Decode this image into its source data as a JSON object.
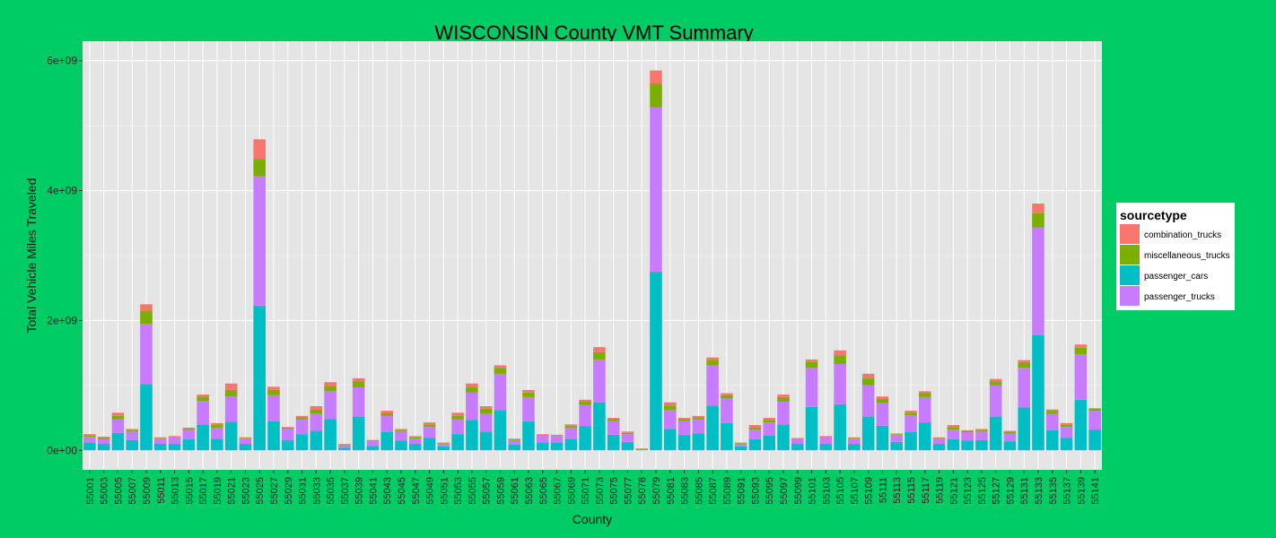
{
  "chart_data": {
    "type": "bar",
    "stacked": true,
    "title": "WISCONSIN County VMT Summary",
    "xlabel": "County",
    "ylabel": "Total Vehicle Miles Traveled",
    "ylim": [
      -300000000,
      6300000000
    ],
    "yticks": [
      0,
      2000000000,
      4000000000,
      6000000000
    ],
    "ytick_labels": [
      "0e+00",
      "2e+09",
      "4e+09",
      "6e+09"
    ],
    "grid": true,
    "legend": {
      "title": "sourcetype",
      "position": "right",
      "entries": [
        "combination_trucks",
        "miscellaneous_trucks",
        "passenger_cars",
        "passenger_trucks"
      ]
    },
    "colors": {
      "passenger_cars": "#00bfc4",
      "passenger_trucks": "#c77cff",
      "miscellaneous_trucks": "#7cae00",
      "combination_trucks": "#f8766d",
      "background": "#00cc66",
      "panel": "#e5e5e5"
    },
    "categories": [
      "55001",
      "55003",
      "55005",
      "55007",
      "55009",
      "55011",
      "55013",
      "55015",
      "55017",
      "55019",
      "55021",
      "55023",
      "55025",
      "55027",
      "55029",
      "55031",
      "55033",
      "55035",
      "55037",
      "55039",
      "55041",
      "55043",
      "55045",
      "55047",
      "55049",
      "55051",
      "55053",
      "55055",
      "55057",
      "55059",
      "55061",
      "55063",
      "55065",
      "55067",
      "55069",
      "55071",
      "55073",
      "55075",
      "55077",
      "55078",
      "55079",
      "55081",
      "55083",
      "55085",
      "55087",
      "55089",
      "55091",
      "55093",
      "55095",
      "55097",
      "55099",
      "55101",
      "55103",
      "55105",
      "55107",
      "55109",
      "55111",
      "55113",
      "55115",
      "55117",
      "55119",
      "55121",
      "55123",
      "55125",
      "55127",
      "55129",
      "55131",
      "55133",
      "55135",
      "55137",
      "55139",
      "55141"
    ],
    "series": [
      {
        "name": "passenger_cars",
        "values": [
          120000000,
          100000000,
          270000000,
          160000000,
          1020000000,
          100000000,
          100000000,
          170000000,
          400000000,
          180000000,
          440000000,
          100000000,
          2230000000,
          450000000,
          160000000,
          250000000,
          300000000,
          480000000,
          40000000,
          520000000,
          70000000,
          280000000,
          150000000,
          100000000,
          190000000,
          60000000,
          250000000,
          470000000,
          290000000,
          620000000,
          90000000,
          450000000,
          120000000,
          120000000,
          180000000,
          370000000,
          740000000,
          240000000,
          130000000,
          10000000,
          2750000000,
          330000000,
          240000000,
          260000000,
          690000000,
          420000000,
          60000000,
          170000000,
          230000000,
          400000000,
          100000000,
          670000000,
          100000000,
          710000000,
          100000000,
          520000000,
          380000000,
          130000000,
          280000000,
          430000000,
          100000000,
          170000000,
          150000000,
          160000000,
          520000000,
          140000000,
          660000000,
          1780000000,
          310000000,
          190000000,
          780000000,
          320000000
        ]
      },
      {
        "name": "passenger_trucks",
        "values": [
          90000000,
          70000000,
          210000000,
          130000000,
          930000000,
          80000000,
          100000000,
          140000000,
          360000000,
          170000000,
          390000000,
          80000000,
          1990000000,
          400000000,
          170000000,
          230000000,
          270000000,
          430000000,
          40000000,
          450000000,
          70000000,
          250000000,
          140000000,
          80000000,
          170000000,
          40000000,
          230000000,
          420000000,
          280000000,
          560000000,
          70000000,
          370000000,
          110000000,
          100000000,
          170000000,
          330000000,
          660000000,
          210000000,
          120000000,
          10000000,
          2530000000,
          290000000,
          210000000,
          220000000,
          620000000,
          380000000,
          40000000,
          150000000,
          200000000,
          350000000,
          70000000,
          600000000,
          100000000,
          620000000,
          80000000,
          480000000,
          350000000,
          110000000,
          260000000,
          390000000,
          80000000,
          150000000,
          130000000,
          130000000,
          480000000,
          120000000,
          610000000,
          1650000000,
          260000000,
          170000000,
          700000000,
          290000000
        ]
      },
      {
        "name": "miscellaneous_trucks",
        "values": [
          20000000,
          20000000,
          50000000,
          20000000,
          200000000,
          10000000,
          10000000,
          20000000,
          70000000,
          40000000,
          100000000,
          10000000,
          270000000,
          80000000,
          20000000,
          30000000,
          60000000,
          80000000,
          10000000,
          90000000,
          10000000,
          40000000,
          20000000,
          20000000,
          40000000,
          10000000,
          50000000,
          80000000,
          70000000,
          90000000,
          10000000,
          70000000,
          10000000,
          10000000,
          30000000,
          50000000,
          110000000,
          30000000,
          20000000,
          5000000,
          370000000,
          70000000,
          30000000,
          30000000,
          80000000,
          50000000,
          10000000,
          30000000,
          40000000,
          70000000,
          10000000,
          90000000,
          10000000,
          130000000,
          10000000,
          110000000,
          60000000,
          10000000,
          40000000,
          60000000,
          10000000,
          40000000,
          20000000,
          20000000,
          60000000,
          30000000,
          80000000,
          220000000,
          40000000,
          40000000,
          100000000,
          30000000
        ]
      },
      {
        "name": "combination_trucks",
        "values": [
          20000000,
          20000000,
          50000000,
          20000000,
          100000000,
          10000000,
          10000000,
          20000000,
          30000000,
          30000000,
          100000000,
          10000000,
          300000000,
          50000000,
          10000000,
          20000000,
          50000000,
          60000000,
          10000000,
          50000000,
          10000000,
          40000000,
          20000000,
          20000000,
          30000000,
          10000000,
          50000000,
          60000000,
          40000000,
          40000000,
          10000000,
          40000000,
          10000000,
          10000000,
          20000000,
          30000000,
          80000000,
          20000000,
          20000000,
          5000000,
          200000000,
          50000000,
          20000000,
          20000000,
          40000000,
          30000000,
          10000000,
          40000000,
          30000000,
          40000000,
          10000000,
          40000000,
          10000000,
          80000000,
          10000000,
          70000000,
          40000000,
          10000000,
          30000000,
          30000000,
          10000000,
          30000000,
          10000000,
          20000000,
          40000000,
          10000000,
          40000000,
          150000000,
          20000000,
          20000000,
          50000000,
          10000000
        ]
      }
    ]
  }
}
